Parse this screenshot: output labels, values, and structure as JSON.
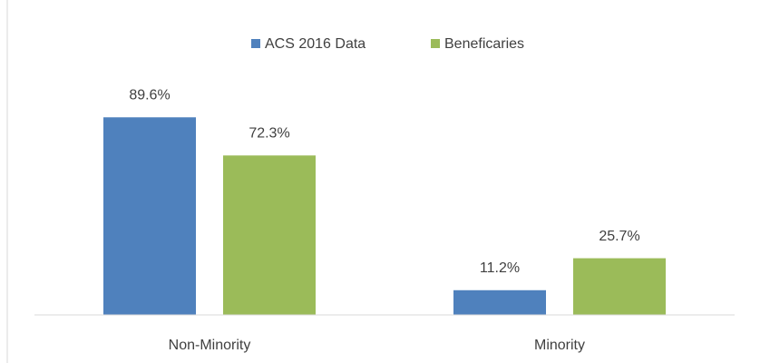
{
  "chart_data": {
    "type": "bar",
    "categories": [
      "Non-Minority",
      "Minority"
    ],
    "series": [
      {
        "name": "ACS 2016 Data",
        "color": "#4f81bd",
        "values": [
          89.6,
          11.2
        ],
        "value_labels": [
          "89.6%",
          "11.2%"
        ]
      },
      {
        "name": "Beneficaries",
        "color": "#9bbb59",
        "values": [
          72.3,
          25.7
        ],
        "value_labels": [
          "72.3%",
          "25.7%"
        ]
      }
    ],
    "legend": "top"
  }
}
